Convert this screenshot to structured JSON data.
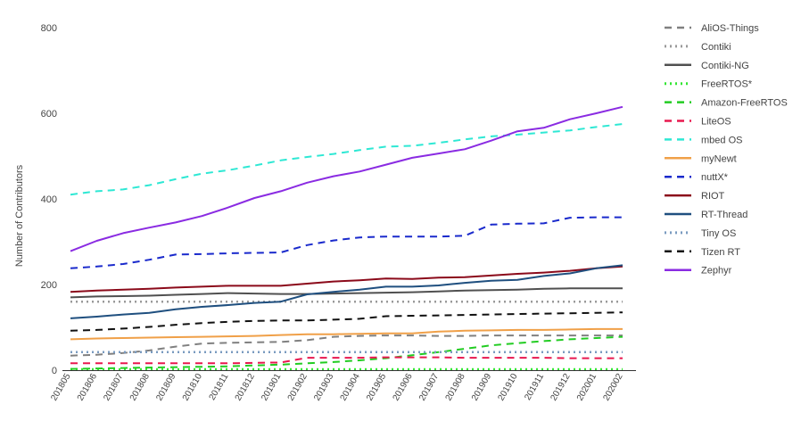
{
  "chart_data": {
    "type": "line",
    "ylabel": "Number of Contributors",
    "xlabel": "",
    "ylim": [
      0,
      800
    ],
    "yticks": [
      0,
      200,
      400,
      600,
      800
    ],
    "grid": false,
    "legend_position": "right",
    "categories": [
      "201805",
      "201806",
      "201807",
      "201808",
      "201809",
      "201810",
      "201811",
      "201812",
      "201901",
      "201902",
      "201903",
      "201904",
      "201905",
      "201906",
      "201907",
      "201908",
      "201909",
      "201910",
      "201911",
      "201912",
      "202001",
      "202002"
    ],
    "series": [
      {
        "name": "AliOS-Things",
        "color": "#808080",
        "dash": "8,6",
        "width": 2,
        "values": [
          34,
          36,
          40,
          46,
          55,
          62,
          64,
          65,
          66,
          70,
          78,
          80,
          81,
          81,
          80,
          80,
          81,
          81,
          81,
          81,
          81,
          81
        ]
      },
      {
        "name": "Contiki",
        "color": "#9a9a9a",
        "dash": "2,4",
        "width": 2.5,
        "values": [
          160,
          160,
          160,
          160,
          160,
          160,
          160,
          160,
          160,
          160,
          160,
          160,
          160,
          160,
          160,
          160,
          160,
          160,
          160,
          160,
          160,
          160
        ]
      },
      {
        "name": "Contiki-NG",
        "color": "#505050",
        "dash": "",
        "width": 2,
        "values": [
          170,
          172,
          173,
          174,
          176,
          178,
          180,
          179,
          178,
          178,
          179,
          180,
          181,
          182,
          184,
          186,
          187,
          188,
          190,
          191,
          191,
          191
        ]
      },
      {
        "name": "FreeRTOS*",
        "color": "#33e633",
        "dash": "2,4",
        "width": 2.5,
        "values": [
          2,
          2,
          2,
          2,
          2,
          2,
          2,
          2,
          2,
          2,
          2,
          2,
          2,
          2,
          2,
          2,
          2,
          2,
          2,
          2,
          2,
          2
        ]
      },
      {
        "name": "Amazon-FreeRTOS",
        "color": "#22cc22",
        "dash": "8,6",
        "width": 2,
        "values": [
          3,
          4,
          5,
          6,
          7,
          8,
          9,
          11,
          13,
          16,
          19,
          23,
          28,
          35,
          42,
          50,
          58,
          63,
          68,
          72,
          75,
          78
        ]
      },
      {
        "name": "LiteOS",
        "color": "#e8184f",
        "dash": "8,6",
        "width": 2,
        "values": [
          16,
          16,
          16,
          16,
          16,
          16,
          16,
          17,
          18,
          29,
          29,
          29,
          30,
          30,
          30,
          29,
          29,
          29,
          29,
          28,
          28,
          28
        ]
      },
      {
        "name": "mbed OS",
        "color": "#2ee8d4",
        "dash": "8,6",
        "width": 2,
        "values": [
          410,
          418,
          422,
          432,
          446,
          459,
          467,
          478,
          490,
          498,
          505,
          514,
          522,
          524,
          531,
          539,
          546,
          550,
          555,
          560,
          568,
          575
        ]
      },
      {
        "name": "myNewt",
        "color": "#f0a048",
        "dash": "",
        "width": 2,
        "values": [
          72,
          74,
          75,
          76,
          77,
          78,
          79,
          80,
          82,
          84,
          84,
          85,
          86,
          86,
          90,
          92,
          93,
          94,
          94,
          95,
          96,
          96
        ]
      },
      {
        "name": "nuttX*",
        "color": "#1a2acc",
        "dash": "8,6",
        "width": 2,
        "values": [
          238,
          242,
          248,
          258,
          270,
          271,
          273,
          274,
          275,
          292,
          303,
          310,
          312,
          312,
          312,
          314,
          340,
          342,
          343,
          356,
          357,
          357
        ]
      },
      {
        "name": "RIOT",
        "color": "#8b0a1a",
        "dash": "",
        "width": 2,
        "values": [
          183,
          186,
          188,
          190,
          193,
          195,
          197,
          197,
          197,
          202,
          207,
          210,
          214,
          213,
          216,
          217,
          221,
          225,
          228,
          232,
          238,
          242
        ]
      },
      {
        "name": "RT-Thread",
        "color": "#1f4f7f",
        "dash": "",
        "width": 2,
        "values": [
          121,
          125,
          130,
          134,
          142,
          148,
          152,
          157,
          160,
          177,
          183,
          188,
          195,
          195,
          198,
          204,
          209,
          211,
          220,
          226,
          238,
          245
        ]
      },
      {
        "name": "Tiny OS",
        "color": "#7a9bc0",
        "dash": "2,4",
        "width": 2.5,
        "values": [
          42,
          42,
          42,
          42,
          42,
          42,
          42,
          42,
          42,
          42,
          42,
          42,
          42,
          42,
          42,
          42,
          42,
          42,
          42,
          42,
          42,
          42
        ]
      },
      {
        "name": "Tizen RT",
        "color": "#111111",
        "dash": "8,6",
        "width": 2,
        "values": [
          92,
          94,
          97,
          101,
          106,
          110,
          113,
          115,
          116,
          116,
          118,
          120,
          126,
          127,
          128,
          129,
          130,
          131,
          132,
          133,
          134,
          135
        ]
      },
      {
        "name": "Zephyr",
        "color": "#8a2be2",
        "dash": "",
        "width": 2,
        "values": [
          278,
          302,
          320,
          333,
          345,
          360,
          380,
          402,
          418,
          438,
          453,
          464,
          480,
          496,
          506,
          516,
          536,
          558,
          566,
          586,
          600,
          615
        ]
      }
    ]
  }
}
